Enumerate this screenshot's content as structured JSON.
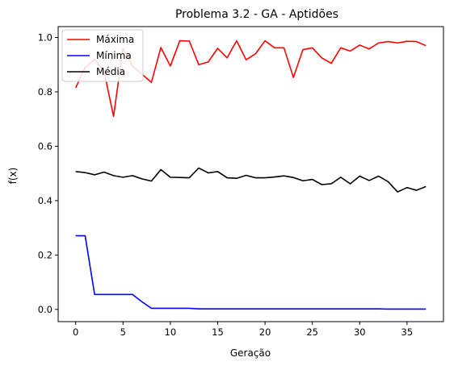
{
  "chart_data": {
    "type": "line",
    "title": "Problema 3.2 - GA - Aptidões",
    "xlabel": "Geração",
    "ylabel": "f(x)",
    "xlim": [
      -1.85,
      38.85
    ],
    "ylim": [
      -0.045,
      1.04
    ],
    "xticks": [
      0,
      5,
      10,
      15,
      20,
      25,
      30,
      35
    ],
    "yticks": [
      0.0,
      0.2,
      0.4,
      0.6,
      0.8,
      1.0
    ],
    "ytick_labels": [
      "0.0",
      "0.2",
      "0.4",
      "0.6",
      "0.8",
      "1.0"
    ],
    "legend_position": "top-left",
    "grid": false,
    "x": [
      0,
      1,
      2,
      3,
      4,
      5,
      6,
      7,
      8,
      9,
      10,
      11,
      12,
      13,
      14,
      15,
      16,
      17,
      18,
      19,
      20,
      21,
      22,
      23,
      24,
      25,
      26,
      27,
      28,
      29,
      30,
      31,
      32,
      33,
      34,
      35,
      36,
      37
    ],
    "series": [
      {
        "name": "Máxima",
        "color": "#ff0000",
        "values": [
          0.815,
          0.89,
          0.92,
          0.875,
          0.71,
          0.96,
          0.895,
          0.865,
          0.835,
          0.963,
          0.895,
          0.988,
          0.987,
          0.9,
          0.91,
          0.96,
          0.925,
          0.988,
          0.918,
          0.94,
          0.988,
          0.962,
          0.962,
          0.853,
          0.955,
          0.962,
          0.925,
          0.905,
          0.962,
          0.95,
          0.972,
          0.958,
          0.98,
          0.985,
          0.98,
          0.986,
          0.985,
          0.97
        ]
      },
      {
        "name": "Mínima",
        "color": "#0000ff",
        "values": [
          0.271,
          0.271,
          0.055,
          0.055,
          0.055,
          0.055,
          0.055,
          0.028,
          0.004,
          0.004,
          0.004,
          0.004,
          0.004,
          0.002,
          0.002,
          0.002,
          0.002,
          0.002,
          0.002,
          0.002,
          0.002,
          0.002,
          0.002,
          0.002,
          0.002,
          0.002,
          0.002,
          0.002,
          0.002,
          0.002,
          0.002,
          0.002,
          0.002,
          0.001,
          0.001,
          0.001,
          0.001,
          0.001
        ]
      },
      {
        "name": "Média",
        "color": "#000000",
        "values": [
          0.507,
          0.503,
          0.495,
          0.505,
          0.492,
          0.486,
          0.492,
          0.48,
          0.472,
          0.514,
          0.486,
          0.485,
          0.484,
          0.52,
          0.502,
          0.507,
          0.484,
          0.482,
          0.493,
          0.484,
          0.484,
          0.487,
          0.491,
          0.485,
          0.473,
          0.478,
          0.459,
          0.462,
          0.486,
          0.462,
          0.49,
          0.474,
          0.49,
          0.47,
          0.432,
          0.448,
          0.438,
          0.452
        ]
      }
    ]
  }
}
